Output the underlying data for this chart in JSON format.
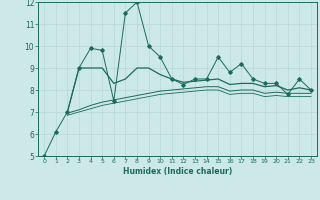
{
  "xlabel": "Humidex (Indice chaleur)",
  "xlim": [
    -0.5,
    23.5
  ],
  "ylim": [
    5,
    12
  ],
  "xticks": [
    0,
    1,
    2,
    3,
    4,
    5,
    6,
    7,
    8,
    9,
    10,
    11,
    12,
    13,
    14,
    15,
    16,
    17,
    18,
    19,
    20,
    21,
    22,
    23
  ],
  "yticks": [
    5,
    6,
    7,
    8,
    9,
    10,
    11,
    12
  ],
  "bg_color": "#cde8e8",
  "grid_color": "#b8d8d8",
  "line_color": "#1a6b5a",
  "line1_x": [
    0,
    1,
    2,
    3,
    4,
    5,
    6,
    7,
    8,
    9,
    10,
    11,
    12,
    13,
    14,
    15,
    16,
    17,
    18,
    19,
    20,
    21,
    22,
    23
  ],
  "line1_y": [
    5.0,
    6.1,
    7.0,
    9.0,
    9.9,
    9.8,
    7.5,
    11.5,
    12.0,
    10.0,
    9.5,
    8.5,
    8.25,
    8.5,
    8.5,
    9.5,
    8.8,
    9.2,
    8.5,
    8.3,
    8.3,
    7.8,
    8.5,
    8.0
  ],
  "line2_x": [
    2,
    3,
    4,
    5,
    6,
    7,
    8,
    9,
    10,
    11,
    12,
    13,
    14,
    15,
    16,
    17,
    18,
    19,
    20,
    21,
    22,
    23
  ],
  "line2_y": [
    7.0,
    9.0,
    9.0,
    9.0,
    8.3,
    8.5,
    9.0,
    9.0,
    8.7,
    8.5,
    8.35,
    8.4,
    8.45,
    8.5,
    8.25,
    8.3,
    8.3,
    8.15,
    8.2,
    8.0,
    8.1,
    8.0
  ],
  "line3_x": [
    2,
    3,
    4,
    5,
    6,
    7,
    8,
    9,
    10,
    11,
    12,
    13,
    14,
    15,
    16,
    17,
    18,
    19,
    20,
    21,
    22,
    23
  ],
  "line3_y": [
    6.95,
    7.1,
    7.3,
    7.45,
    7.55,
    7.65,
    7.75,
    7.85,
    7.95,
    8.0,
    8.05,
    8.1,
    8.15,
    8.15,
    7.95,
    8.0,
    8.0,
    7.85,
    7.9,
    7.85,
    7.85,
    7.85
  ],
  "line4_x": [
    2,
    3,
    4,
    5,
    6,
    7,
    8,
    9,
    10,
    11,
    12,
    13,
    14,
    15,
    16,
    17,
    18,
    19,
    20,
    21,
    22,
    23
  ],
  "line4_y": [
    6.85,
    7.0,
    7.15,
    7.3,
    7.4,
    7.5,
    7.6,
    7.7,
    7.8,
    7.85,
    7.9,
    7.95,
    8.0,
    8.0,
    7.8,
    7.85,
    7.85,
    7.7,
    7.75,
    7.7,
    7.7,
    7.7
  ]
}
